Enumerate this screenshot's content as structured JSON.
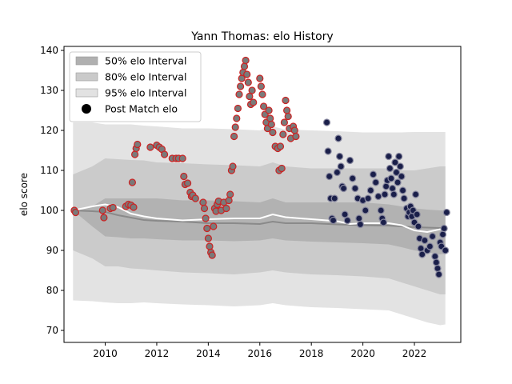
{
  "chart_data": {
    "type": "scatter",
    "title": "Yann Thomas: elo History",
    "xlabel": "",
    "ylabel": "elo score",
    "xlim": [
      2008.4,
      2023.8
    ],
    "ylim": [
      67,
      141
    ],
    "xticks": [
      2010,
      2012,
      2014,
      2016,
      2018,
      2020,
      2022
    ],
    "yticks": [
      70,
      80,
      90,
      100,
      110,
      120,
      130,
      140
    ],
    "grid": false,
    "legend_position": "top-left",
    "legend": [
      {
        "label": "50% elo Interval",
        "kind": "band",
        "color": "#b0b0b0"
      },
      {
        "label": "80% elo Interval",
        "kind": "band",
        "color": "#cacaca"
      },
      {
        "label": "95% elo Interval",
        "kind": "band",
        "color": "#e2e2e2"
      },
      {
        "label": "Post Match elo",
        "kind": "marker",
        "color": "#000000"
      }
    ],
    "colors": {
      "band50": "#b2b2b2",
      "band80": "#cbcbcb",
      "band95": "#e3e3e3",
      "median_line": "#8a8a8a",
      "mean_line": "#ffffff",
      "points_2008_2018_fill": "#7a7a7a",
      "points_2008_2018_edge": "#cc2222",
      "points_2018_2023_fill": "#1a1f4a",
      "points_2018_2023_edge": "#8a8aa0"
    },
    "band_x": [
      2008.75,
      2009.5,
      2010.0,
      2010.5,
      2011.0,
      2011.5,
      2012.0,
      2013.0,
      2014.0,
      2015.0,
      2016.0,
      2016.5,
      2017.0,
      2018.0,
      2019.0,
      2020.0,
      2021.0,
      2021.5,
      2022.0,
      2022.5,
      2023.0,
      2023.2
    ],
    "band95_upper": [
      122.0,
      122.0,
      121.5,
      121.5,
      121.5,
      121.2,
      121.0,
      120.5,
      120.5,
      120.3,
      120.0,
      121.0,
      120.2,
      120.0,
      119.8,
      119.5,
      119.5,
      119.5,
      119.6,
      119.6,
      119.6,
      119.6
    ],
    "band95_lower": [
      77.5,
      77.3,
      77.0,
      76.8,
      76.8,
      77.0,
      76.8,
      76.5,
      76.3,
      76.0,
      76.3,
      76.8,
      76.3,
      75.8,
      75.6,
      75.3,
      75.0,
      74.0,
      73.0,
      72.0,
      71.3,
      71.5
    ],
    "band80_upper": [
      109.0,
      111.0,
      113.0,
      112.8,
      112.6,
      112.5,
      112.0,
      111.8,
      111.5,
      111.3,
      111.0,
      112.0,
      111.0,
      110.5,
      110.5,
      110.5,
      110.5,
      110.0,
      110.0,
      110.5,
      111.0,
      111.0
    ],
    "band80_lower": [
      90.0,
      88.0,
      86.0,
      86.0,
      85.5,
      85.3,
      85.0,
      84.5,
      84.3,
      84.0,
      84.5,
      85.0,
      84.5,
      84.0,
      83.8,
      83.5,
      83.0,
      82.0,
      81.0,
      80.0,
      79.0,
      79.0
    ],
    "band50_upper": [
      100.0,
      101.0,
      103.0,
      103.0,
      103.0,
      103.0,
      103.0,
      102.5,
      102.5,
      102.3,
      102.0,
      103.0,
      102.0,
      102.0,
      102.0,
      102.0,
      101.5,
      101.0,
      100.5,
      100.2,
      100.0,
      100.0
    ],
    "band50_lower": [
      100.0,
      96.0,
      93.5,
      93.3,
      93.0,
      93.0,
      92.8,
      92.5,
      92.5,
      92.3,
      92.5,
      93.0,
      92.5,
      92.2,
      92.0,
      91.8,
      91.5,
      90.8,
      90.0,
      89.5,
      89.0,
      89.2
    ],
    "median_line": {
      "x": [
        2008.75,
        2009.5,
        2010.0,
        2010.5,
        2011.0,
        2011.5,
        2012.0,
        2013.0,
        2014.0,
        2015.0,
        2016.0,
        2016.5,
        2017.0,
        2018.0,
        2019.0,
        2020.0,
        2021.0,
        2021.5,
        2022.0,
        2022.5,
        2023.0,
        2023.2
      ],
      "y": [
        100.0,
        99.8,
        99.6,
        98.8,
        98.2,
        97.6,
        97.4,
        97.2,
        96.8,
        96.8,
        96.6,
        97.2,
        96.8,
        96.8,
        96.5,
        96.3,
        96.2,
        96.0,
        95.8,
        95.7,
        95.6,
        95.5
      ]
    },
    "mean_line": {
      "x": [
        2008.75,
        2009.5,
        2010.0,
        2010.5,
        2011.0,
        2011.5,
        2012.0,
        2013.0,
        2014.0,
        2015.0,
        2016.0,
        2016.5,
        2017.0,
        2018.0,
        2019.0,
        2019.5,
        2020.0,
        2021.0,
        2021.5,
        2022.0,
        2022.5,
        2023.0,
        2023.2
      ],
      "y": [
        100.0,
        101.0,
        101.5,
        100.8,
        99.2,
        98.5,
        98.0,
        97.5,
        97.8,
        98.0,
        98.0,
        99.0,
        98.3,
        97.8,
        97.3,
        96.6,
        96.8,
        96.8,
        96.3,
        95.0,
        94.6,
        95.3,
        94.8
      ]
    },
    "series": [
      {
        "fill": "#7a7a7a",
        "edge": "#cc2222",
        "points": [
          [
            2008.8,
            100.0
          ],
          [
            2008.85,
            99.5
          ],
          [
            2009.9,
            100.0
          ],
          [
            2009.95,
            98.2
          ],
          [
            2010.2,
            100.5
          ],
          [
            2010.3,
            100.7
          ],
          [
            2010.8,
            101.0
          ],
          [
            2010.9,
            101.5
          ],
          [
            2011.0,
            101.3
          ],
          [
            2011.05,
            107.0
          ],
          [
            2011.1,
            100.8
          ],
          [
            2011.15,
            114.0
          ],
          [
            2011.2,
            115.5
          ],
          [
            2011.25,
            116.5
          ],
          [
            2011.75,
            115.8
          ],
          [
            2012.0,
            116.3
          ],
          [
            2012.1,
            115.8
          ],
          [
            2012.2,
            115.3
          ],
          [
            2012.3,
            114.0
          ],
          [
            2012.6,
            113.0
          ],
          [
            2012.75,
            113.0
          ],
          [
            2012.85,
            113.0
          ],
          [
            2013.0,
            113.0
          ],
          [
            2013.05,
            108.5
          ],
          [
            2013.1,
            106.5
          ],
          [
            2013.2,
            106.8
          ],
          [
            2013.3,
            104.5
          ],
          [
            2013.35,
            103.5
          ],
          [
            2013.4,
            103.8
          ],
          [
            2013.5,
            103.0
          ],
          [
            2013.8,
            102.0
          ],
          [
            2013.85,
            100.5
          ],
          [
            2013.9,
            98.0
          ],
          [
            2013.95,
            95.5
          ],
          [
            2014.0,
            93.0
          ],
          [
            2014.05,
            91.0
          ],
          [
            2014.1,
            89.5
          ],
          [
            2014.15,
            88.8
          ],
          [
            2014.2,
            96.0
          ],
          [
            2014.25,
            100.5
          ],
          [
            2014.3,
            99.8
          ],
          [
            2014.35,
            101.5
          ],
          [
            2014.4,
            102.3
          ],
          [
            2014.5,
            100.0
          ],
          [
            2014.6,
            102.0
          ],
          [
            2014.7,
            100.5
          ],
          [
            2014.8,
            102.5
          ],
          [
            2014.85,
            104.0
          ],
          [
            2014.9,
            110.0
          ],
          [
            2014.95,
            111.0
          ],
          [
            2015.0,
            118.5
          ],
          [
            2015.05,
            120.8
          ],
          [
            2015.1,
            123.0
          ],
          [
            2015.15,
            125.5
          ],
          [
            2015.2,
            129.0
          ],
          [
            2015.25,
            131.0
          ],
          [
            2015.3,
            133.0
          ],
          [
            2015.35,
            134.5
          ],
          [
            2015.4,
            136.0
          ],
          [
            2015.45,
            137.5
          ],
          [
            2015.5,
            134.0
          ],
          [
            2015.55,
            132.0
          ],
          [
            2015.6,
            128.5
          ],
          [
            2015.65,
            126.5
          ],
          [
            2015.7,
            130.0
          ],
          [
            2015.75,
            127.0
          ],
          [
            2016.0,
            133.0
          ],
          [
            2016.05,
            131.0
          ],
          [
            2016.1,
            129.0
          ],
          [
            2016.15,
            126.0
          ],
          [
            2016.2,
            124.0
          ],
          [
            2016.25,
            122.0
          ],
          [
            2016.3,
            120.5
          ],
          [
            2016.35,
            125.0
          ],
          [
            2016.4,
            123.0
          ],
          [
            2016.45,
            121.5
          ],
          [
            2016.5,
            119.5
          ],
          [
            2016.6,
            116.0
          ],
          [
            2016.7,
            115.5
          ],
          [
            2016.75,
            110.0
          ],
          [
            2016.8,
            116.0
          ],
          [
            2016.85,
            110.5
          ],
          [
            2016.9,
            119.0
          ],
          [
            2016.95,
            122.0
          ],
          [
            2017.0,
            127.5
          ],
          [
            2017.05,
            125.0
          ],
          [
            2017.1,
            123.5
          ],
          [
            2017.15,
            120.5
          ],
          [
            2017.2,
            118.0
          ],
          [
            2017.3,
            121.0
          ],
          [
            2017.35,
            120.0
          ],
          [
            2017.4,
            118.5
          ]
        ]
      },
      {
        "fill": "#1a1f4a",
        "edge": "#8a8aa0",
        "points": [
          [
            2018.6,
            122.0
          ],
          [
            2018.65,
            114.8
          ],
          [
            2018.7,
            108.5
          ],
          [
            2018.75,
            103.0
          ],
          [
            2018.8,
            98.0
          ],
          [
            2018.85,
            97.5
          ],
          [
            2018.9,
            103.0
          ],
          [
            2019.0,
            109.5
          ],
          [
            2019.05,
            118.0
          ],
          [
            2019.1,
            113.5
          ],
          [
            2019.15,
            111.0
          ],
          [
            2019.2,
            106.0
          ],
          [
            2019.25,
            105.5
          ],
          [
            2019.3,
            99.0
          ],
          [
            2019.4,
            97.5
          ],
          [
            2019.5,
            112.5
          ],
          [
            2019.6,
            108.0
          ],
          [
            2019.7,
            105.5
          ],
          [
            2019.8,
            103.0
          ],
          [
            2019.85,
            98.0
          ],
          [
            2019.9,
            96.5
          ],
          [
            2020.0,
            102.5
          ],
          [
            2020.1,
            100.0
          ],
          [
            2020.2,
            103.0
          ],
          [
            2020.3,
            105.0
          ],
          [
            2020.4,
            109.0
          ],
          [
            2020.5,
            107.0
          ],
          [
            2020.6,
            103.5
          ],
          [
            2020.7,
            100.0
          ],
          [
            2020.75,
            98.0
          ],
          [
            2020.8,
            97.0
          ],
          [
            2020.85,
            104.0
          ],
          [
            2020.9,
            106.0
          ],
          [
            2020.95,
            107.5
          ],
          [
            2021.0,
            113.5
          ],
          [
            2021.05,
            110.5
          ],
          [
            2021.1,
            108.0
          ],
          [
            2021.15,
            105.5
          ],
          [
            2021.2,
            104.0
          ],
          [
            2021.25,
            112.0
          ],
          [
            2021.3,
            109.5
          ],
          [
            2021.35,
            107.0
          ],
          [
            2021.4,
            113.5
          ],
          [
            2021.45,
            111.0
          ],
          [
            2021.5,
            108.5
          ],
          [
            2021.55,
            105.0
          ],
          [
            2021.6,
            103.0
          ],
          [
            2021.7,
            100.5
          ],
          [
            2021.75,
            98.5
          ],
          [
            2021.8,
            99.5
          ],
          [
            2021.85,
            101.0
          ],
          [
            2021.9,
            98.5
          ],
          [
            2021.95,
            100.0
          ],
          [
            2022.0,
            97.0
          ],
          [
            2022.05,
            104.0
          ],
          [
            2022.1,
            99.0
          ],
          [
            2022.15,
            96.0
          ],
          [
            2022.2,
            93.0
          ],
          [
            2022.25,
            90.5
          ],
          [
            2022.3,
            89.0
          ],
          [
            2022.4,
            92.5
          ],
          [
            2022.5,
            90.0
          ],
          [
            2022.6,
            91.0
          ],
          [
            2022.7,
            93.5
          ],
          [
            2022.8,
            88.5
          ],
          [
            2022.85,
            87.0
          ],
          [
            2022.9,
            85.5
          ],
          [
            2022.95,
            84.0
          ],
          [
            2023.0,
            92.0
          ],
          [
            2023.05,
            91.0
          ],
          [
            2023.1,
            94.0
          ],
          [
            2023.15,
            95.5
          ],
          [
            2023.2,
            90.0
          ],
          [
            2023.25,
            99.5
          ]
        ]
      }
    ]
  }
}
